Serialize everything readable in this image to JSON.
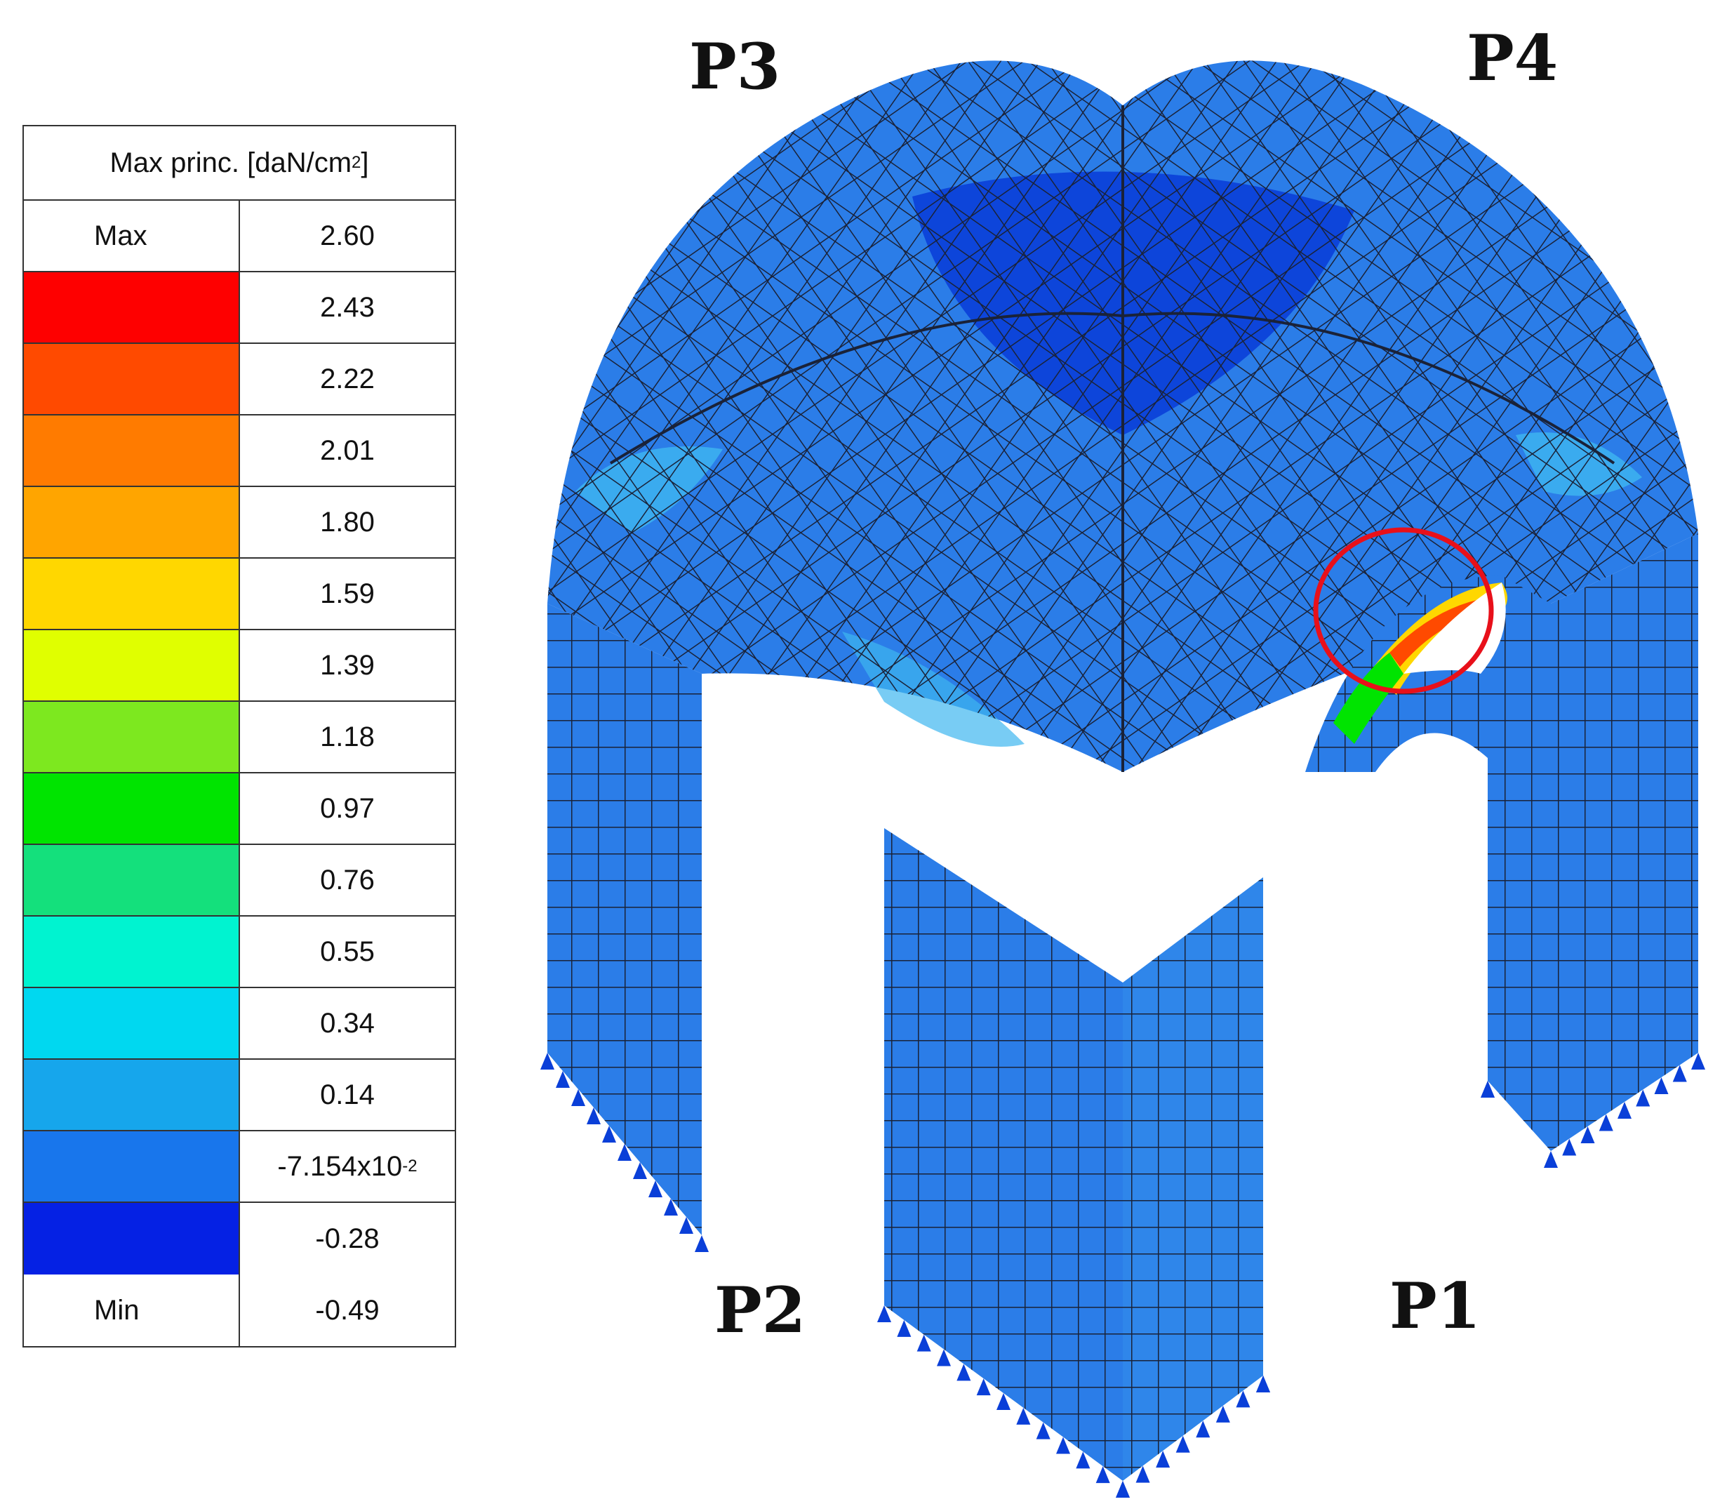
{
  "legend": {
    "title": "Max princ. [daN/cm",
    "title_sup": "2",
    "title_end": "]",
    "max_label": "Max",
    "max_value": "2.60",
    "min_label": "Min",
    "min_value": "-0.49",
    "bands": [
      {
        "value": "2.43",
        "color": "#fe0000"
      },
      {
        "value": "2.22",
        "color": "#ff4a00"
      },
      {
        "value": "2.01",
        "color": "#ff7b00"
      },
      {
        "value": "1.80",
        "color": "#ffa500"
      },
      {
        "value": "1.59",
        "color": "#ffd700"
      },
      {
        "value": "1.39",
        "color": "#e0ff00"
      },
      {
        "value": "1.18",
        "color": "#7de81f"
      },
      {
        "value": "0.97",
        "color": "#00e400"
      },
      {
        "value": "0.76",
        "color": "#14e07c"
      },
      {
        "value": "0.55",
        "color": "#00f3d0"
      },
      {
        "value": "0.34",
        "color": "#00d8f0"
      },
      {
        "value": "0.14",
        "color": "#16a6ec"
      },
      {
        "value_main": "-7.154x10",
        "value_sup": "-2",
        "color": "#1876ec"
      },
      {
        "value": "-0.28",
        "color": "#0521e4"
      }
    ]
  },
  "piers": {
    "p1": "P1",
    "p2": "P2",
    "p3": "P3",
    "p4": "P4"
  },
  "colors": {
    "mesh_base": "#2b7de8",
    "mesh_dark": "#0a3fd8",
    "mesh_light": "#3fb7f0",
    "mesh_line": "#1a2238",
    "highlight_circle": "#e8101a"
  }
}
